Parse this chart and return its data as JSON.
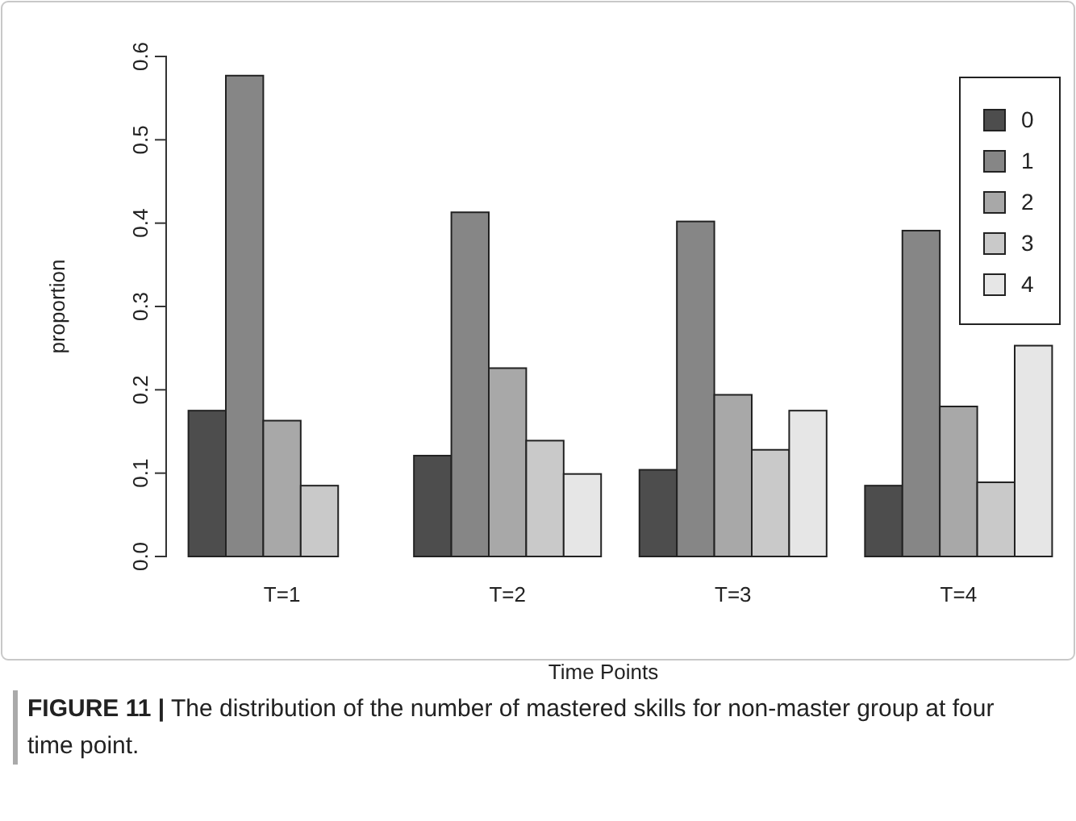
{
  "chart_data": {
    "type": "bar",
    "xlabel": "Time Points",
    "ylabel": "proportion",
    "categories": [
      "T=1",
      "T=2",
      "T=3",
      "T=4"
    ],
    "series": [
      {
        "name": "0",
        "color": "#4d4d4d",
        "values": [
          0.175,
          0.121,
          0.104,
          0.085
        ]
      },
      {
        "name": "1",
        "color": "#868686",
        "values": [
          0.577,
          0.413,
          0.402,
          0.391
        ]
      },
      {
        "name": "2",
        "color": "#a8a8a8",
        "values": [
          0.163,
          0.226,
          0.194,
          0.18
        ]
      },
      {
        "name": "3",
        "color": "#c9c9c9",
        "values": [
          0.085,
          0.139,
          0.128,
          0.089
        ]
      },
      {
        "name": "4",
        "color": "#e6e6e6",
        "values": [
          0,
          0.099,
          0.175,
          0.253
        ]
      }
    ],
    "ylim": [
      0,
      0.6
    ],
    "yticks": [
      {
        "value": 0,
        "label": "0.0"
      },
      {
        "value": 0.1,
        "label": "0.1"
      },
      {
        "value": 0.2,
        "label": "0.2"
      },
      {
        "value": 0.3,
        "label": "0.3"
      },
      {
        "value": 0.4,
        "label": "0.4"
      },
      {
        "value": 0.5,
        "label": "0.5"
      },
      {
        "value": 0.6,
        "label": "0.6"
      }
    ],
    "legend": "top right",
    "grid": false,
    "annotations": [
      "FIGURE 11 | The distribution of the number of mastered skills for non-master group at four time point."
    ]
  }
}
